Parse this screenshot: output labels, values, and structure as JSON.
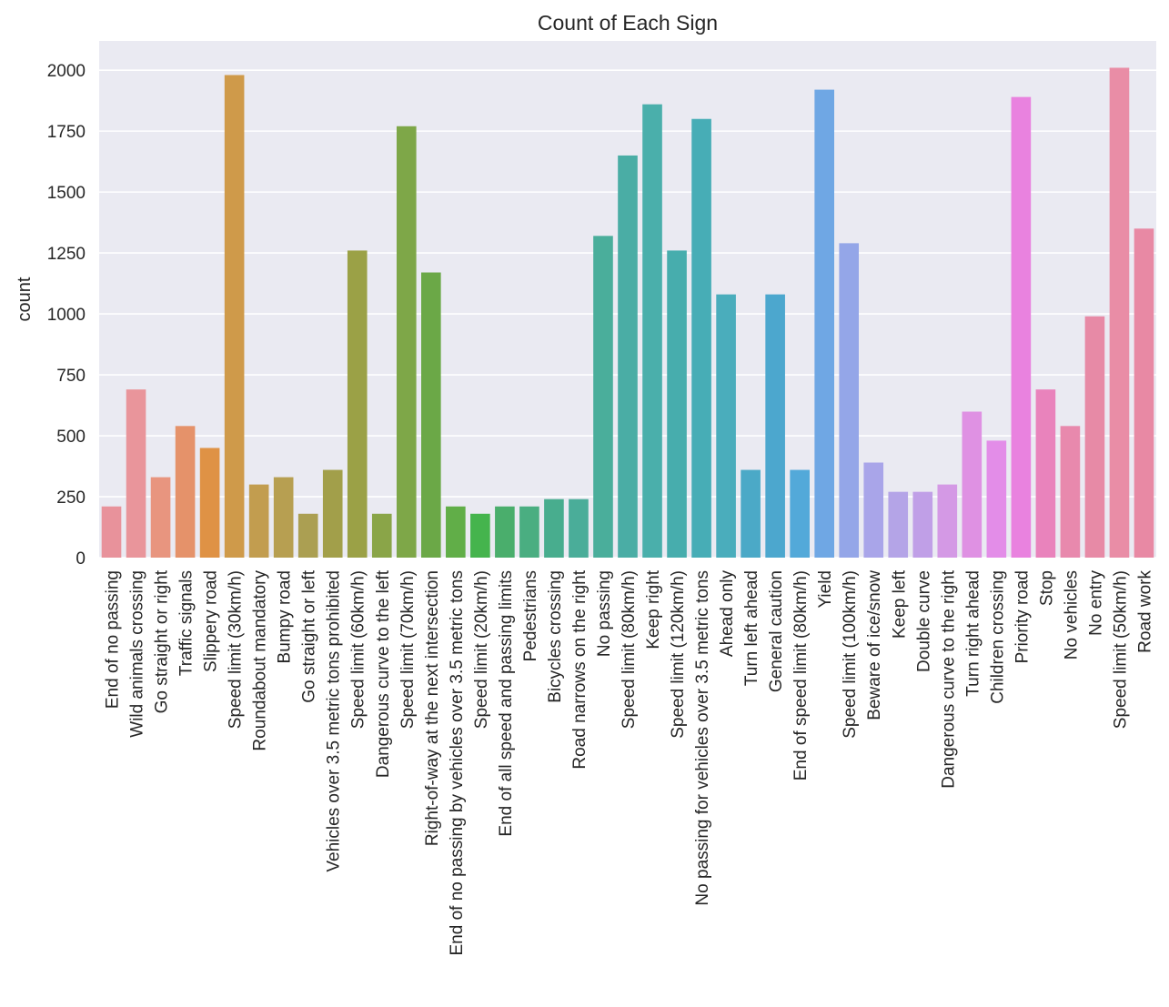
{
  "chart_data": {
    "type": "bar",
    "title": "Count of Each Sign",
    "xlabel": "",
    "ylabel": "count",
    "ylim": [
      0,
      2120
    ],
    "yticks": [
      0,
      250,
      500,
      750,
      1000,
      1250,
      1500,
      1750,
      2000
    ],
    "grid": true,
    "categories": [
      "End of no passing",
      "Wild animals crossing",
      "Go straight or right",
      "Traffic signals",
      "Slippery road",
      "Speed limit (30km/h)",
      "Roundabout mandatory",
      "Bumpy road",
      "Go straight or left",
      "Vehicles over 3.5 metric tons prohibited",
      "Speed limit (60km/h)",
      "Dangerous curve to the left",
      "Speed limit (70km/h)",
      "Right-of-way at the next intersection",
      "End of no passing by vehicles over 3.5 metric tons",
      "Speed limit (20km/h)",
      "End of all speed and passing limits",
      "Pedestrians",
      "Bicycles crossing",
      "Road narrows on the right",
      "No passing",
      "Speed limit (80km/h)",
      "Keep right",
      "Speed limit (120km/h)",
      "No passing for vehicles over 3.5 metric tons",
      "Ahead only",
      "Turn left ahead",
      "General caution",
      "End of speed limit (80km/h)",
      "Yield",
      "Speed limit (100km/h)",
      "Beware of ice/snow",
      "Keep left",
      "Double curve",
      "Dangerous curve to the right",
      "Turn right ahead",
      "Children crossing",
      "Priority road",
      "Stop",
      "No vehicles",
      "No entry",
      "Speed limit (50km/h)",
      "Road work"
    ],
    "values": [
      210,
      690,
      330,
      540,
      450,
      1980,
      300,
      330,
      180,
      360,
      1260,
      180,
      1770,
      1170,
      210,
      180,
      210,
      210,
      240,
      240,
      1320,
      1650,
      1860,
      1260,
      1800,
      1080,
      360,
      1080,
      360,
      1920,
      1290,
      390,
      270,
      270,
      300,
      599,
      480,
      1890,
      690,
      540,
      990,
      2010,
      1350
    ],
    "colors": [
      "#e8929b",
      "#e9959b",
      "#e8957f",
      "#e5926a",
      "#df9245",
      "#cf9a4a",
      "#c29d4f",
      "#b79f51",
      "#ab9f52",
      "#a29f4a",
      "#9ba146",
      "#8aa548",
      "#7ea748",
      "#6ba847",
      "#61ae48",
      "#45b44d",
      "#4aae6c",
      "#4aae81",
      "#48ad8e",
      "#4aad99",
      "#4aae9b",
      "#4aada5",
      "#4aafab",
      "#47adad",
      "#47adb6",
      "#4aadbc",
      "#4ba9c7",
      "#4ca7ce",
      "#53a9d9",
      "#6fa7e4",
      "#94a6e8",
      "#a9a5e9",
      "#b4a4e7",
      "#c09fe7",
      "#d499e5",
      "#df91e3",
      "#e38de8",
      "#e982df",
      "#e983bc",
      "#e889ad",
      "#e78aa6",
      "#e98da6",
      "#e889a4"
    ]
  }
}
